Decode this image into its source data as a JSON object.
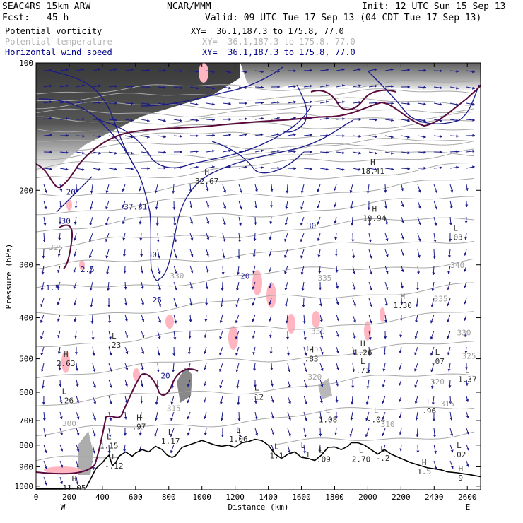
{
  "header": {
    "model": "SEAC4RS 15km ARW",
    "org": "NCAR/MMM",
    "init": "Init: 12 UTC Sun 15 Sep 13",
    "fcst_label": "Fcst:",
    "fcst_value": "45 h",
    "valid": "Valid: 09 UTC Tue 17 Sep 13 (04 CDT Tue 17 Sep 13)",
    "fields": [
      {
        "name": "Potential vorticity",
        "xy": "XY=  36.1,187.3 to 175.8, 77.0",
        "color": "#000000"
      },
      {
        "name": "Potential temperature",
        "xy": "XY=  36.1,187.3 to 175.8, 77.0",
        "color": "#b4b4b4"
      },
      {
        "name": "Horizontal wind speed",
        "xy": "XY=  36.1,187.3 to 175.8, 77.0",
        "color": "#00008b"
      }
    ]
  },
  "colors": {
    "pv_high": "#3c3c3c",
    "pv_neg": "#ffb6c1",
    "pv_contour": "#5a0a3c",
    "theta": "#a8a8a8",
    "wind": "#1a1a8c",
    "terrain": "#000000"
  },
  "chart_data": {
    "type": "cross-section",
    "xlabel": "Distance (km)",
    "ylabel": "Pressure (hPa)",
    "xlim": [
      0,
      2680
    ],
    "ylim": [
      1020,
      100
    ],
    "y_scale": "log-pressure",
    "x_ticks": [
      0,
      200,
      400,
      600,
      800,
      1000,
      1200,
      1400,
      1600,
      1800,
      2000,
      2200,
      2400,
      2600
    ],
    "y_ticks": [
      100,
      200,
      300,
      400,
      500,
      600,
      700,
      800,
      900,
      1000
    ],
    "x_end_labels": {
      "left": "W",
      "right": "E"
    },
    "theta_contours": [
      {
        "label": "300",
        "x": 200,
        "p": 722
      },
      {
        "label": "310",
        "x": 2120,
        "p": 725
      },
      {
        "label": "315",
        "x": 830,
        "p": 665
      },
      {
        "label": "315",
        "x": 2480,
        "p": 648
      },
      {
        "label": "320",
        "x": 1680,
        "p": 560
      },
      {
        "label": "320",
        "x": 2420,
        "p": 575
      },
      {
        "label": "325",
        "x": 1660,
        "p": 480
      },
      {
        "label": "325",
        "x": 2610,
        "p": 500
      },
      {
        "label": "330",
        "x": 1700,
        "p": 437
      },
      {
        "label": "330",
        "x": 2580,
        "p": 440
      },
      {
        "label": "335",
        "x": 1740,
        "p": 327
      },
      {
        "label": "335",
        "x": 2440,
        "p": 366
      },
      {
        "label": "340",
        "x": 2540,
        "p": 305
      },
      {
        "label": "325",
        "x": 120,
        "p": 277
      },
      {
        "label": "330",
        "x": 850,
        "p": 323
      }
    ],
    "wind_speed_contours": [
      {
        "label": "20",
        "x": 210,
        "p": 205
      },
      {
        "label": "30",
        "x": 180,
        "p": 240
      },
      {
        "label": "37.31",
        "x": 600,
        "p": 222
      },
      {
        "label": "30",
        "x": 700,
        "p": 288
      },
      {
        "label": "25",
        "x": 730,
        "p": 368
      },
      {
        "label": "20",
        "x": 780,
        "p": 557
      },
      {
        "label": "20",
        "x": 1260,
        "p": 324
      },
      {
        "label": "30",
        "x": 1660,
        "p": 246
      },
      {
        "label": "2.5",
        "x": 310,
        "p": 312
      },
      {
        "label": "1.5",
        "x": 100,
        "p": 345
      }
    ],
    "extrema": [
      {
        "type": "H",
        "value": "32.67",
        "x": 1030,
        "p": 193
      },
      {
        "type": "H",
        "value": "18.41",
        "x": 2030,
        "p": 183
      },
      {
        "type": "H",
        "value": "19.94",
        "x": 2040,
        "p": 236
      },
      {
        "type": "L",
        "value": ".03",
        "x": 2530,
        "p": 262
      },
      {
        "type": "H",
        "value": "1.30",
        "x": 2210,
        "p": 380
      },
      {
        "type": "L",
        "value": ".23",
        "x": 470,
        "p": 471
      },
      {
        "type": "H",
        "value": "2.63",
        "x": 180,
        "p": 520
      },
      {
        "type": "L",
        "value": "-.26",
        "x": 170,
        "p": 637
      },
      {
        "type": "H",
        "value": ".83",
        "x": 1660,
        "p": 508
      },
      {
        "type": "H",
        "value": "1.26",
        "x": 1970,
        "p": 490
      },
      {
        "type": "L",
        "value": ".71",
        "x": 1970,
        "p": 541
      },
      {
        "type": "L",
        "value": ".07",
        "x": 2420,
        "p": 514
      },
      {
        "type": "L",
        "value": "1.37",
        "x": 2600,
        "p": 568
      },
      {
        "type": "L",
        "value": ".12",
        "x": 1330,
        "p": 625
      },
      {
        "type": "L",
        "value": ".96",
        "x": 2370,
        "p": 674
      },
      {
        "type": "L",
        "value": "1.08",
        "x": 1760,
        "p": 706
      },
      {
        "type": "L",
        "value": "-.04",
        "x": 2050,
        "p": 706
      },
      {
        "type": "H",
        "value": ".97",
        "x": 620,
        "p": 734
      },
      {
        "type": "L",
        "value": "1.06",
        "x": 1220,
        "p": 785
      },
      {
        "type": "L",
        "value": "1.15",
        "x": 440,
        "p": 815
      },
      {
        "type": "L",
        "value": "1.17",
        "x": 810,
        "p": 795
      },
      {
        "type": "L",
        "value": "1.1",
        "x": 1450,
        "p": 860
      },
      {
        "type": "L",
        "value": "-.1",
        "x": 1610,
        "p": 855
      },
      {
        "type": "L",
        "value": "-.09",
        "x": 1720,
        "p": 877
      },
      {
        "type": "L",
        "value": "2.70",
        "x": 1960,
        "p": 877
      },
      {
        "type": "L",
        "value": "-.2",
        "x": 2090,
        "p": 872
      },
      {
        "type": "L",
        "value": "-.12",
        "x": 470,
        "p": 909
      },
      {
        "type": "L",
        "value": ".02",
        "x": 2550,
        "p": 855
      },
      {
        "type": "H",
        "value": "11.05",
        "x": 230,
        "p": 1024
      },
      {
        "type": "H",
        "value": "1.5",
        "x": 2340,
        "p": 938
      },
      {
        "type": "H",
        "value": "9",
        "x": 2560,
        "p": 970
      }
    ],
    "terrain_profile": [
      [
        0,
        1014
      ],
      [
        150,
        1014
      ],
      [
        250,
        1012
      ],
      [
        300,
        1010
      ],
      [
        330,
        960
      ],
      [
        360,
        910
      ],
      [
        400,
        880
      ],
      [
        420,
        860
      ],
      [
        440,
        845
      ],
      [
        460,
        895
      ],
      [
        480,
        880
      ],
      [
        500,
        850
      ],
      [
        540,
        830
      ],
      [
        580,
        850
      ],
      [
        600,
        835
      ],
      [
        640,
        820
      ],
      [
        680,
        830
      ],
      [
        720,
        805
      ],
      [
        760,
        820
      ],
      [
        790,
        845
      ],
      [
        820,
        855
      ],
      [
        840,
        848
      ],
      [
        880,
        810
      ],
      [
        920,
        800
      ],
      [
        960,
        790
      ],
      [
        1000,
        780
      ],
      [
        1040,
        790
      ],
      [
        1080,
        800
      ],
      [
        1120,
        805
      ],
      [
        1160,
        800
      ],
      [
        1200,
        810
      ],
      [
        1240,
        790
      ],
      [
        1280,
        785
      ],
      [
        1320,
        775
      ],
      [
        1360,
        780
      ],
      [
        1400,
        800
      ],
      [
        1440,
        840
      ],
      [
        1480,
        860
      ],
      [
        1520,
        840
      ],
      [
        1560,
        830
      ],
      [
        1600,
        855
      ],
      [
        1640,
        860
      ],
      [
        1680,
        870
      ],
      [
        1720,
        845
      ],
      [
        1760,
        810
      ],
      [
        1800,
        808
      ],
      [
        1840,
        820
      ],
      [
        1880,
        805
      ],
      [
        1900,
        790
      ],
      [
        1940,
        790
      ],
      [
        1980,
        800
      ],
      [
        2020,
        820
      ],
      [
        2060,
        840
      ],
      [
        2100,
        820
      ],
      [
        2140,
        840
      ],
      [
        2200,
        860
      ],
      [
        2260,
        880
      ],
      [
        2320,
        895
      ],
      [
        2360,
        905
      ],
      [
        2400,
        910
      ],
      [
        2440,
        915
      ],
      [
        2480,
        925
      ],
      [
        2540,
        930
      ],
      [
        2580,
        935
      ],
      [
        2620,
        940
      ],
      [
        2680,
        950
      ]
    ]
  }
}
